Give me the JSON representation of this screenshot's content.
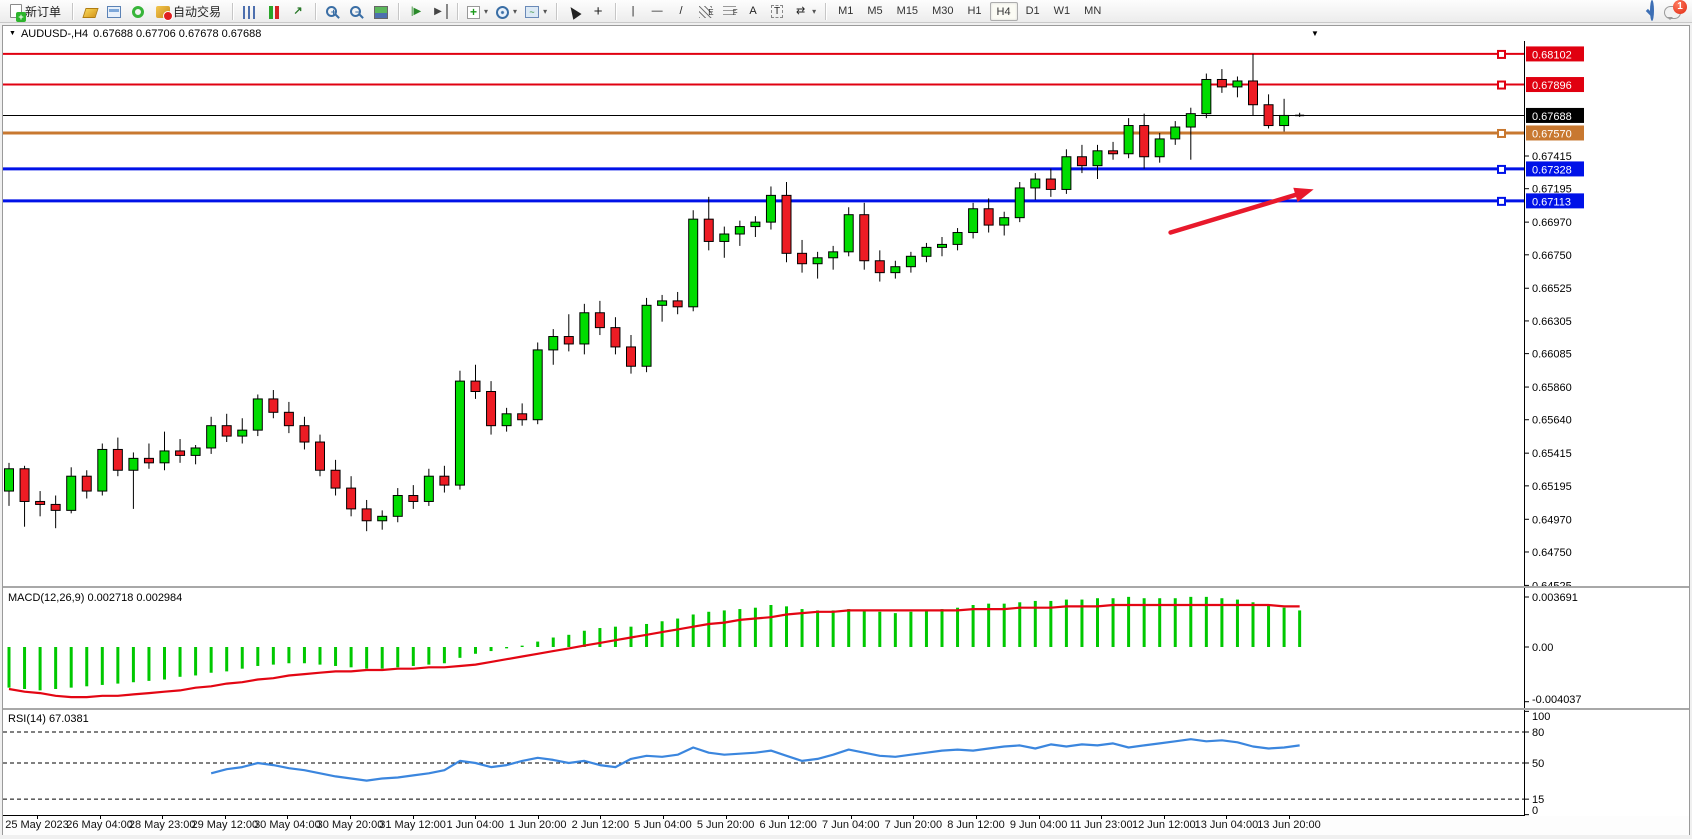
{
  "toolbar": {
    "new_order_label": "新订单",
    "auto_trading_label": "自动交易",
    "timeframes": [
      "M1",
      "M5",
      "M15",
      "M30",
      "H1",
      "H4",
      "D1",
      "W1",
      "MN"
    ],
    "active_timeframe": "H4",
    "notification_count": "1"
  },
  "chart": {
    "title_symbol": "AUDUSD-,H4",
    "title_ohlc": "0.67688 0.67706 0.67678 0.67688"
  },
  "indicators": {
    "macd_label": "MACD(12,26,9) 0.002718 0.002984",
    "rsi_label": "RSI(14) 67.0381"
  },
  "colors": {
    "bull": "#00DC00",
    "bear": "#ED1C24",
    "wick": "#000000",
    "macd_hist": "#00C800",
    "macd_signal": "#E30613",
    "rsi_line": "#3B86DE",
    "line_red": "#E00010",
    "line_blue": "#0012E8",
    "line_orange": "#C87830",
    "bid_line": "#000000",
    "arrow": "#E8192C"
  },
  "chart_data": [
    {
      "type": "candlestick",
      "symbol": "AUDUSD-",
      "timeframe": "H4",
      "ylim": [
        0.64521,
        0.68189
      ],
      "grid": false,
      "price_ticks": [
        "0.67415",
        "0.67195",
        "0.66970",
        "0.66750",
        "0.66525",
        "0.66305",
        "0.66085",
        "0.65860",
        "0.65640",
        "0.65415",
        "0.65195",
        "0.64970",
        "0.64750",
        "0.64525"
      ],
      "x_labels": [
        "25 May 2023",
        "26 May 04:00",
        "28 May 23:00",
        "29 May 12:00",
        "30 May 04:00",
        "30 May 20:00",
        "31 May 12:00",
        "1 Jun 04:00",
        "1 Jun 20:00",
        "2 Jun 12:00",
        "5 Jun 04:00",
        "5 Jun 20:00",
        "6 Jun 12:00",
        "7 Jun 04:00",
        "7 Jun 20:00",
        "8 Jun 12:00",
        "9 Jun 04:00",
        "11 Jun 23:00",
        "12 Jun 12:00",
        "13 Jun 04:00",
        "13 Jun 20:00"
      ],
      "candles": [
        [
          0.6516,
          0.6535,
          0.6506,
          0.6531
        ],
        [
          0.6531,
          0.6533,
          0.6492,
          0.6509
        ],
        [
          0.6509,
          0.6516,
          0.6499,
          0.6507
        ],
        [
          0.6507,
          0.6513,
          0.6491,
          0.6503
        ],
        [
          0.6503,
          0.6532,
          0.6501,
          0.6526
        ],
        [
          0.6526,
          0.653,
          0.6511,
          0.6516
        ],
        [
          0.6516,
          0.6548,
          0.6513,
          0.6544
        ],
        [
          0.6544,
          0.6552,
          0.6526,
          0.653
        ],
        [
          0.653,
          0.6542,
          0.6504,
          0.6538
        ],
        [
          0.6538,
          0.6548,
          0.6531,
          0.6535
        ],
        [
          0.6535,
          0.6556,
          0.653,
          0.6543
        ],
        [
          0.6543,
          0.6551,
          0.6535,
          0.654
        ],
        [
          0.654,
          0.6547,
          0.6534,
          0.6545
        ],
        [
          0.6545,
          0.6566,
          0.6541,
          0.656
        ],
        [
          0.656,
          0.6568,
          0.6549,
          0.6553
        ],
        [
          0.6553,
          0.6565,
          0.6548,
          0.6557
        ],
        [
          0.6557,
          0.6581,
          0.6553,
          0.6578
        ],
        [
          0.6578,
          0.6584,
          0.6565,
          0.6569
        ],
        [
          0.6569,
          0.6576,
          0.6555,
          0.656
        ],
        [
          0.656,
          0.6566,
          0.6544,
          0.6549
        ],
        [
          0.6549,
          0.6554,
          0.6526,
          0.653
        ],
        [
          0.653,
          0.6537,
          0.6513,
          0.6518
        ],
        [
          0.6518,
          0.6526,
          0.6499,
          0.6504
        ],
        [
          0.6504,
          0.651,
          0.6489,
          0.6496
        ],
        [
          0.6496,
          0.6503,
          0.649,
          0.6499
        ],
        [
          0.6499,
          0.6518,
          0.6495,
          0.6513
        ],
        [
          0.6513,
          0.652,
          0.6504,
          0.6509
        ],
        [
          0.6509,
          0.6531,
          0.6506,
          0.6526
        ],
        [
          0.6526,
          0.6533,
          0.6515,
          0.652
        ],
        [
          0.652,
          0.6597,
          0.6517,
          0.659
        ],
        [
          0.659,
          0.6601,
          0.6578,
          0.6583
        ],
        [
          0.6583,
          0.659,
          0.6554,
          0.656
        ],
        [
          0.656,
          0.6572,
          0.6556,
          0.6568
        ],
        [
          0.6568,
          0.6575,
          0.656,
          0.6564
        ],
        [
          0.6564,
          0.6616,
          0.6561,
          0.6611
        ],
        [
          0.6611,
          0.6625,
          0.6601,
          0.662
        ],
        [
          0.662,
          0.6635,
          0.661,
          0.6615
        ],
        [
          0.6615,
          0.6642,
          0.6608,
          0.6636
        ],
        [
          0.6636,
          0.6644,
          0.6621,
          0.6626
        ],
        [
          0.6626,
          0.6633,
          0.6608,
          0.6613
        ],
        [
          0.6613,
          0.6621,
          0.6595,
          0.66
        ],
        [
          0.66,
          0.6646,
          0.6596,
          0.6641
        ],
        [
          0.6641,
          0.6648,
          0.663,
          0.6644
        ],
        [
          0.6644,
          0.665,
          0.6635,
          0.664
        ],
        [
          0.664,
          0.6705,
          0.6637,
          0.6699
        ],
        [
          0.6699,
          0.6714,
          0.6678,
          0.6684
        ],
        [
          0.6684,
          0.6694,
          0.6673,
          0.6689
        ],
        [
          0.6689,
          0.6698,
          0.6681,
          0.6694
        ],
        [
          0.6694,
          0.6701,
          0.6687,
          0.6697
        ],
        [
          0.6697,
          0.6721,
          0.6692,
          0.6715
        ],
        [
          0.6715,
          0.6724,
          0.667,
          0.6676
        ],
        [
          0.6676,
          0.6685,
          0.6663,
          0.6669
        ],
        [
          0.6669,
          0.6677,
          0.6659,
          0.6673
        ],
        [
          0.6673,
          0.6681,
          0.6665,
          0.6677
        ],
        [
          0.6677,
          0.6707,
          0.6674,
          0.6702
        ],
        [
          0.6702,
          0.671,
          0.6665,
          0.6671
        ],
        [
          0.6671,
          0.6678,
          0.6657,
          0.6663
        ],
        [
          0.6663,
          0.6671,
          0.6659,
          0.6667
        ],
        [
          0.6667,
          0.6677,
          0.6663,
          0.6674
        ],
        [
          0.6674,
          0.6683,
          0.667,
          0.668
        ],
        [
          0.668,
          0.6687,
          0.6674,
          0.6682
        ],
        [
          0.6682,
          0.6693,
          0.6678,
          0.669
        ],
        [
          0.669,
          0.671,
          0.6686,
          0.6706
        ],
        [
          0.6706,
          0.6713,
          0.669,
          0.6695
        ],
        [
          0.6695,
          0.6704,
          0.6688,
          0.67
        ],
        [
          0.67,
          0.6724,
          0.6697,
          0.672
        ],
        [
          0.672,
          0.673,
          0.6712,
          0.6726
        ],
        [
          0.6726,
          0.6733,
          0.6714,
          0.6719
        ],
        [
          0.6719,
          0.6746,
          0.6716,
          0.6741
        ],
        [
          0.6741,
          0.6749,
          0.673,
          0.6735
        ],
        [
          0.6735,
          0.6749,
          0.6726,
          0.6745
        ],
        [
          0.6745,
          0.6751,
          0.6739,
          0.6743
        ],
        [
          0.6743,
          0.6767,
          0.674,
          0.6762
        ],
        [
          0.6762,
          0.677,
          0.6733,
          0.6741
        ],
        [
          0.6741,
          0.6757,
          0.6737,
          0.6753
        ],
        [
          0.6753,
          0.6765,
          0.6749,
          0.6761
        ],
        [
          0.6761,
          0.6774,
          0.6739,
          0.677
        ],
        [
          0.677,
          0.6797,
          0.6767,
          0.6793
        ],
        [
          0.6793,
          0.68,
          0.6784,
          0.6788
        ],
        [
          0.6788,
          0.6795,
          0.6781,
          0.6792
        ],
        [
          0.6792,
          0.68102,
          0.6769,
          0.6776
        ],
        [
          0.6776,
          0.6783,
          0.676,
          0.6762
        ],
        [
          0.6762,
          0.678,
          0.6758,
          0.67688
        ],
        [
          0.67688,
          0.67706,
          0.67678,
          0.67688
        ]
      ],
      "hlines": [
        {
          "price": 0.68102,
          "label": "0.68102",
          "color": "#E00010",
          "width": 2,
          "badge": "#E00010",
          "handle": true
        },
        {
          "price": 0.67896,
          "label": "0.67896",
          "color": "#E00010",
          "width": 2,
          "badge": "#E00010",
          "handle": true
        },
        {
          "price": 0.67688,
          "label": "0.67688",
          "color": "#000000",
          "width": 1,
          "badge": "#000000",
          "handle": false
        },
        {
          "price": 0.6757,
          "label": "0.67570",
          "color": "#C87830",
          "width": 3,
          "badge": "#C87830",
          "handle": true
        },
        {
          "price": 0.67328,
          "label": "0.67328",
          "color": "#0012E8",
          "width": 3,
          "badge": "#0012E8",
          "handle": true
        },
        {
          "price": 0.67113,
          "label": "0.67113",
          "color": "#0012E8",
          "width": 3,
          "badge": "#0012E8",
          "handle": true
        }
      ],
      "arrow": {
        "x1_bar": 74.7,
        "price1": 0.669,
        "x2_bar": 83.9,
        "price2": 0.6719
      }
    },
    {
      "type": "bar",
      "name": "MACD",
      "params": "12,26,9",
      "current_macd": "0.002718",
      "current_signal": "0.002984",
      "levels": [
        {
          "v": 0.003691,
          "label": "0.003691"
        },
        {
          "v": 0,
          "label": "0.00"
        },
        {
          "v": -0.004037,
          "label": "-0.004037"
        }
      ],
      "values": [
        -0.003,
        -0.0031,
        -0.0032,
        -0.0031,
        -0.003,
        -0.0029,
        -0.0028,
        -0.0027,
        -0.0026,
        -0.0025,
        -0.0024,
        -0.0022,
        -0.0021,
        -0.0019,
        -0.0018,
        -0.0016,
        -0.0014,
        -0.0013,
        -0.0012,
        -0.0012,
        -0.0013,
        -0.0014,
        -0.0015,
        -0.0016,
        -0.0016,
        -0.0015,
        -0.0014,
        -0.0013,
        -0.0012,
        -0.0008,
        -0.0005,
        -0.0003,
        -0.0001,
        0.0001,
        0.0004,
        0.0007,
        0.0009,
        0.0012,
        0.0014,
        0.0015,
        0.0015,
        0.0017,
        0.0019,
        0.0021,
        0.0024,
        0.0026,
        0.0027,
        0.0028,
        0.0029,
        0.0031,
        0.003,
        0.0028,
        0.0027,
        0.0027,
        0.0028,
        0.0027,
        0.0026,
        0.0025,
        0.0026,
        0.0027,
        0.0028,
        0.0029,
        0.0031,
        0.0032,
        0.0032,
        0.0033,
        0.0034,
        0.0034,
        0.0035,
        0.0035,
        0.0036,
        0.0036,
        0.0037,
        0.0036,
        0.0036,
        0.0036,
        0.0037,
        0.0037,
        0.0036,
        0.0035,
        0.0033,
        0.0031,
        0.0029,
        0.0027
      ],
      "signal": [
        -0.0031,
        -0.0033,
        -0.0034,
        -0.0036,
        -0.0037,
        -0.0037,
        -0.0036,
        -0.0036,
        -0.0035,
        -0.0034,
        -0.0033,
        -0.0032,
        -0.003,
        -0.0029,
        -0.0027,
        -0.0026,
        -0.0024,
        -0.0023,
        -0.0021,
        -0.002,
        -0.0019,
        -0.0018,
        -0.0018,
        -0.0017,
        -0.0017,
        -0.0016,
        -0.0016,
        -0.0015,
        -0.0015,
        -0.0014,
        -0.0013,
        -0.0011,
        -0.0009,
        -0.0007,
        -0.0005,
        -0.0003,
        -0.0001,
        0.0001,
        0.0003,
        0.0005,
        0.0007,
        0.0009,
        0.0011,
        0.0013,
        0.0015,
        0.0017,
        0.0018,
        0.002,
        0.0021,
        0.0022,
        0.0024,
        0.0025,
        0.0026,
        0.0026,
        0.0027,
        0.0027,
        0.0027,
        0.0027,
        0.0027,
        0.0027,
        0.0027,
        0.0027,
        0.0028,
        0.0028,
        0.0028,
        0.0029,
        0.0029,
        0.0029,
        0.003,
        0.003,
        0.003,
        0.0031,
        0.0031,
        0.0031,
        0.0031,
        0.0031,
        0.0031,
        0.0031,
        0.0031,
        0.0031,
        0.0031,
        0.0031,
        0.003,
        0.003
      ]
    },
    {
      "type": "line",
      "name": "RSI",
      "params": "14",
      "current": "67.0381",
      "levels": [
        {
          "v": 100,
          "label": "100",
          "dashed": false
        },
        {
          "v": 80,
          "label": "80",
          "dashed": true
        },
        {
          "v": 50,
          "label": "50",
          "dashed": true
        },
        {
          "v": 15,
          "label": "15",
          "dashed": true
        },
        {
          "v": 0,
          "label": "0",
          "dashed": false
        }
      ],
      "start_index": 13,
      "values": [
        40,
        44,
        46,
        50,
        48,
        45,
        43,
        40,
        37,
        35,
        33,
        35,
        36,
        38,
        40,
        43,
        52,
        50,
        46,
        48,
        52,
        55,
        53,
        50,
        52,
        48,
        46,
        54,
        57,
        56,
        58,
        65,
        60,
        58,
        59,
        60,
        62,
        57,
        52,
        54,
        58,
        63,
        60,
        57,
        56,
        58,
        60,
        62,
        63,
        62,
        64,
        66,
        67,
        64,
        68,
        66,
        68,
        67,
        69,
        65,
        67,
        69,
        71,
        73,
        71,
        72,
        70,
        66,
        64,
        65,
        67.04
      ]
    }
  ]
}
